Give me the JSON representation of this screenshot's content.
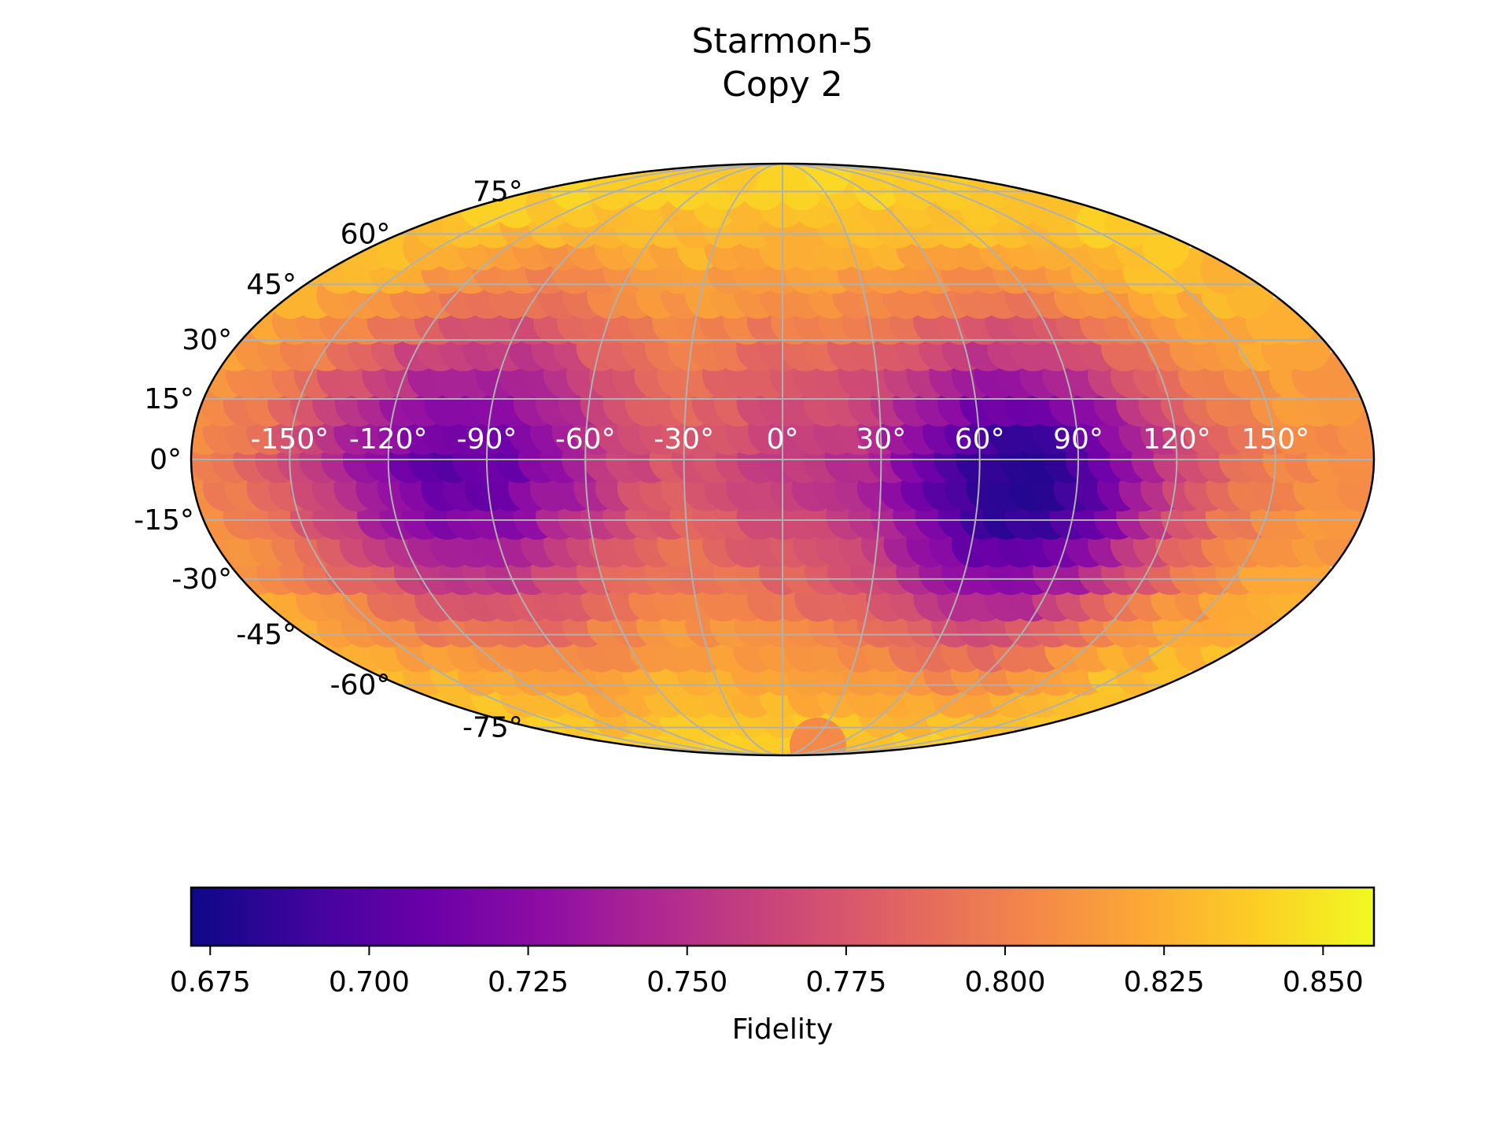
{
  "chart_data": {
    "type": "heatmap",
    "projection": "mollweide",
    "title_lines": [
      "Starmon-5",
      "Copy 2"
    ],
    "x_ticks": [
      "-150°",
      "-120°",
      "-90°",
      "-60°",
      "-30°",
      "0°",
      "30°",
      "60°",
      "90°",
      "120°",
      "150°"
    ],
    "y_ticks": [
      "75°",
      "60°",
      "45°",
      "30°",
      "15°",
      "0°",
      "-15°",
      "-30°",
      "-45°",
      "-60°",
      "-75°"
    ],
    "xlim": [
      -180,
      180
    ],
    "ylim": [
      -90,
      90
    ],
    "grid": true,
    "colormap": "plasma",
    "colorbar": {
      "label": "Fidelity",
      "range": [
        0.672,
        0.858
      ],
      "ticks": [
        "0.675",
        "0.700",
        "0.725",
        "0.750",
        "0.775",
        "0.800",
        "0.825",
        "0.850"
      ],
      "orientation": "horizontal"
    },
    "field": {
      "base": 0.815,
      "components": [
        {
          "lon": 75,
          "lat": -5,
          "lon_width": 50,
          "lat_width": 40,
          "amplitude": -0.14
        },
        {
          "lon": -95,
          "lat": 0,
          "lon_width": 55,
          "lat_width": 42,
          "amplitude": -0.11
        },
        {
          "lon": 0,
          "lat": 0,
          "lon_width": 30,
          "lat_width": 50,
          "amplitude": -0.035
        }
      ],
      "polar_gradient": 0.03
    }
  }
}
